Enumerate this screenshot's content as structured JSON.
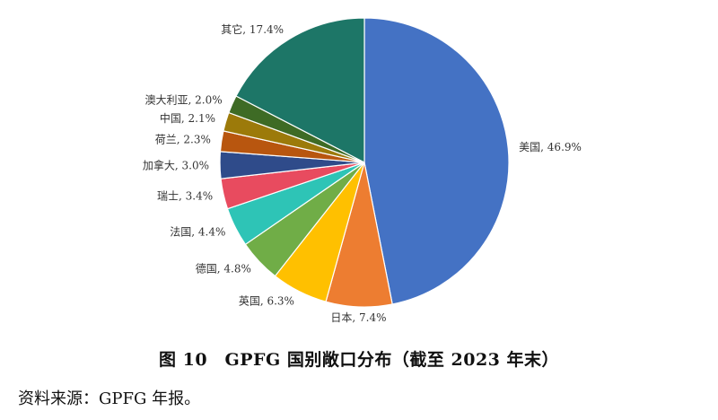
{
  "chart_data": {
    "type": "pie",
    "start_angle_deg": 0,
    "direction": "clockwise",
    "slices": [
      {
        "name": "美国",
        "value": 46.9,
        "label": "美国, 46.9%",
        "color": "#4472C4"
      },
      {
        "name": "日本",
        "value": 7.4,
        "label": "日本, 7.4%",
        "color": "#ED7D31"
      },
      {
        "name": "英国",
        "value": 6.3,
        "label": "英国, 6.3%",
        "color": "#FFC000"
      },
      {
        "name": "德国",
        "value": 4.8,
        "label": "德国, 4.8%",
        "color": "#70AD47"
      },
      {
        "name": "法国",
        "value": 4.4,
        "label": "法国, 4.4%",
        "color": "#2EC4B6"
      },
      {
        "name": "瑞士",
        "value": 3.4,
        "label": "瑞士, 3.4%",
        "color": "#E84B5F"
      },
      {
        "name": "加拿大",
        "value": 3.0,
        "label": "加拿大, 3.0%",
        "color": "#2F4B8A"
      },
      {
        "name": "荷兰",
        "value": 2.3,
        "label": "荷兰, 2.3%",
        "color": "#B8560F"
      },
      {
        "name": "中国",
        "value": 2.1,
        "label": "中国, 2.1%",
        "color": "#9C7A0A"
      },
      {
        "name": "澳大利亚",
        "value": 2.0,
        "label": "澳大利亚, 2.0%",
        "color": "#3E6B25"
      },
      {
        "name": "其它",
        "value": 17.4,
        "label": "其它, 17.4%",
        "color": "#1D7667"
      }
    ]
  },
  "caption": "图 10　GPFG 国别敞口分布（截至 2023 年末）",
  "source": "资料来源：GPFG 年报。"
}
